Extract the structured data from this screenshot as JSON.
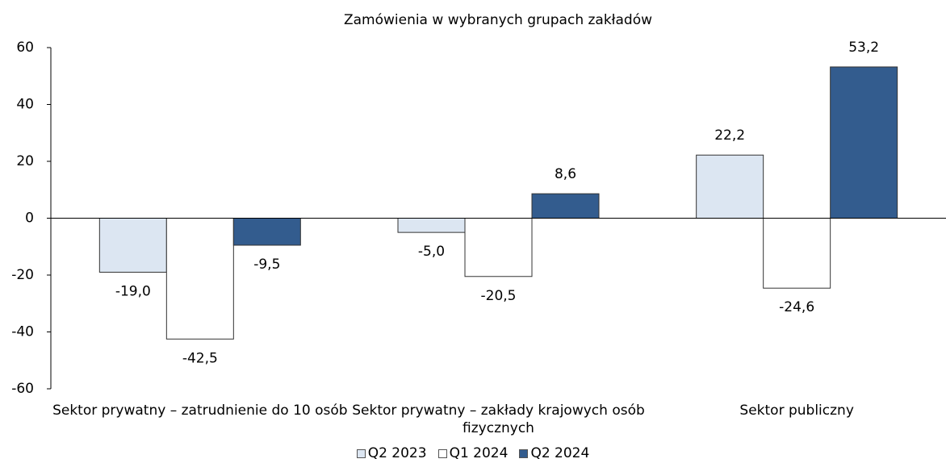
{
  "chart_data": {
    "type": "bar",
    "title": "Zamówienia w wybranych grupach zakładów",
    "categories": [
      "Sektor prywatny – zatrudnienie do 10 osób",
      "Sektor prywatny – zakłady krajowych osób fizycznych",
      "Sektor publiczny"
    ],
    "series": [
      {
        "name": "Q2 2023",
        "color": "#dce6f2",
        "values": [
          -19.0,
          -5.0,
          22.2
        ],
        "value_labels": [
          "-19,0",
          "-5,0",
          "22,2"
        ]
      },
      {
        "name": "Q1 2024",
        "color": "#ffffff",
        "values": [
          -42.5,
          -20.5,
          -24.6
        ],
        "value_labels": [
          "-42,5",
          "-20,5",
          "-24,6"
        ]
      },
      {
        "name": "Q2 2024",
        "color": "#335c8e",
        "values": [
          -9.5,
          8.6,
          53.2
        ],
        "value_labels": [
          "-9,5",
          "8,6",
          "53,2"
        ]
      }
    ],
    "ylim": [
      -60,
      60
    ],
    "yticks": [
      -60,
      -40,
      -20,
      0,
      20,
      40,
      60
    ],
    "legend": "bottom"
  }
}
